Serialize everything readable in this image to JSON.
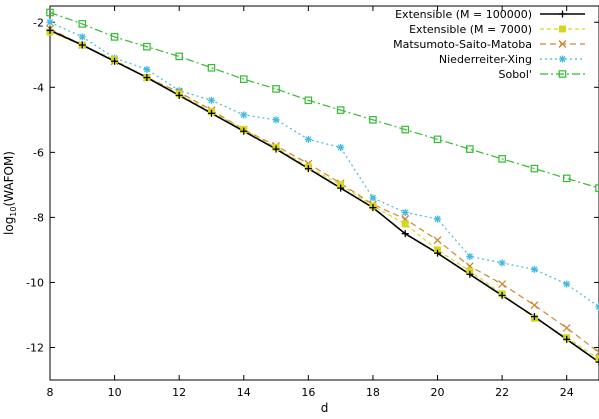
{
  "chart_data": {
    "type": "line",
    "xlabel": "d",
    "ylabel_main": "log",
    "ylabel_sub": "10",
    "ylabel_rest": "(WAFOM)",
    "xlim": [
      8,
      25
    ],
    "ylim": [
      -13,
      -1.5
    ],
    "xticks": [
      8,
      10,
      12,
      14,
      16,
      18,
      20,
      22,
      24
    ],
    "yticks": [
      -12,
      -10,
      -8,
      -6,
      -4,
      -2
    ],
    "grid": false,
    "legend_position": "top-right",
    "x": [
      8,
      9,
      10,
      11,
      12,
      13,
      14,
      15,
      16,
      17,
      18,
      19,
      20,
      21,
      22,
      23,
      24,
      25
    ],
    "series": [
      {
        "name": "Extensible (M = 100000)",
        "color": "#000000",
        "marker": "plus",
        "dash": "",
        "values": [
          -2.25,
          -2.7,
          -3.2,
          -3.7,
          -4.25,
          -4.8,
          -5.35,
          -5.9,
          -6.5,
          -7.1,
          -7.7,
          -8.5,
          -9.1,
          -9.75,
          -10.4,
          -11.05,
          -11.75,
          -12.45
        ]
      },
      {
        "name": "Extensible (M = 7000)",
        "color": "#d6d61f",
        "marker": "square-filled",
        "dash": "4,3",
        "values": [
          -2.3,
          -2.7,
          -3.15,
          -3.7,
          -4.2,
          -4.75,
          -5.3,
          -5.85,
          -6.45,
          -7.0,
          -7.65,
          -8.2,
          -9.0,
          -9.65,
          -10.35,
          -11.1,
          -11.7,
          -12.35
        ]
      },
      {
        "name": "Matsumoto-Saito-Matoba",
        "color": "#cc8833",
        "marker": "cross",
        "dash": "6,4",
        "values": [
          -2.2,
          -2.7,
          -3.2,
          -3.7,
          -4.15,
          -4.7,
          -5.3,
          -5.8,
          -6.35,
          -6.95,
          -7.6,
          -8.05,
          -8.7,
          -9.5,
          -10.05,
          -10.7,
          -11.4,
          -12.15
        ]
      },
      {
        "name": "Niederreiter-Xing",
        "color": "#44bbdd",
        "marker": "star",
        "dash": "2,3",
        "values": [
          -2.0,
          -2.45,
          -3.1,
          -3.45,
          -4.1,
          -4.4,
          -4.85,
          -5.0,
          -5.6,
          -5.85,
          -7.4,
          -7.85,
          -8.05,
          -9.2,
          -9.4,
          -9.6,
          -10.05,
          -10.75
        ]
      },
      {
        "name": "Sobol'",
        "color": "#33bb33",
        "marker": "square-open",
        "dash": "8,3,2,3",
        "values": [
          -1.7,
          -2.05,
          -2.45,
          -2.75,
          -3.05,
          -3.4,
          -3.75,
          -4.05,
          -4.4,
          -4.7,
          -5.0,
          -5.3,
          -5.6,
          -5.9,
          -6.2,
          -6.5,
          -6.8,
          -7.1
        ]
      }
    ]
  }
}
